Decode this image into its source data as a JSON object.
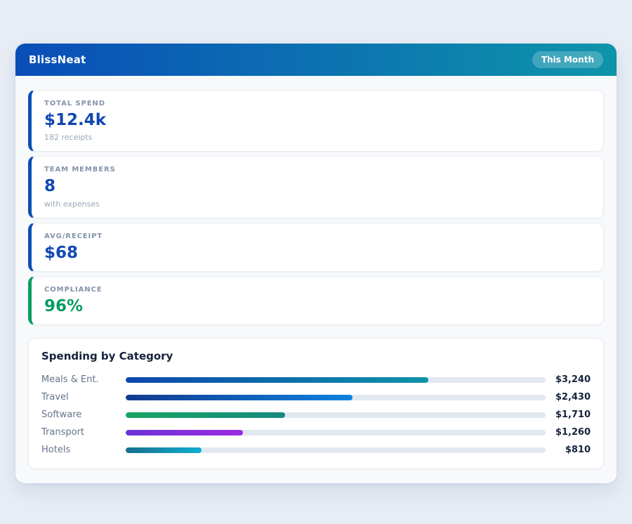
{
  "app": {
    "title": "BlissNeat",
    "period_badge": "This Month"
  },
  "colors": {
    "header_gradient_start": "#0a4db8",
    "header_gradient_end": "#0e95aa",
    "accent_blue": "#0b4fb5",
    "accent_green": "#0a9e5f",
    "value_blue": "#1247b4",
    "value_green": "#089b62",
    "track": "#e2e8f0"
  },
  "stats": [
    {
      "label": "TOTAL SPEND",
      "value": "$12.4k",
      "sub": "182 receipts",
      "accent": "accent_blue",
      "value_color": "value_blue"
    },
    {
      "label": "TEAM MEMBERS",
      "value": "8",
      "sub": "with expenses",
      "accent": "accent_blue",
      "value_color": "value_blue"
    },
    {
      "label": "AVG/RECEIPT",
      "value": "$68",
      "sub": "",
      "accent": "accent_blue",
      "value_color": "value_blue"
    },
    {
      "label": "COMPLIANCE",
      "value": "96%",
      "sub": "",
      "accent": "accent_green",
      "value_color": "value_green"
    }
  ],
  "chart_data": {
    "type": "bar",
    "orientation": "horizontal",
    "title": "Spending by Category",
    "categories": [
      "Meals & Ent.",
      "Travel",
      "Software",
      "Transport",
      "Hotels"
    ],
    "values": [
      3240,
      2430,
      1710,
      1260,
      810
    ],
    "value_labels": [
      "$3,240",
      "$2,430",
      "$1,710",
      "$1,260",
      "$810"
    ],
    "xlim": [
      0,
      4500
    ],
    "grid": false,
    "legend": false,
    "bar_gradients": [
      [
        "#0b47ad",
        "#0e93a8"
      ],
      [
        "#123a8f",
        "#0c82e0"
      ],
      [
        "#17a562",
        "#15897f"
      ],
      [
        "#6b33d6",
        "#9b2be2"
      ],
      [
        "#166f8a",
        "#10aed4"
      ]
    ]
  }
}
